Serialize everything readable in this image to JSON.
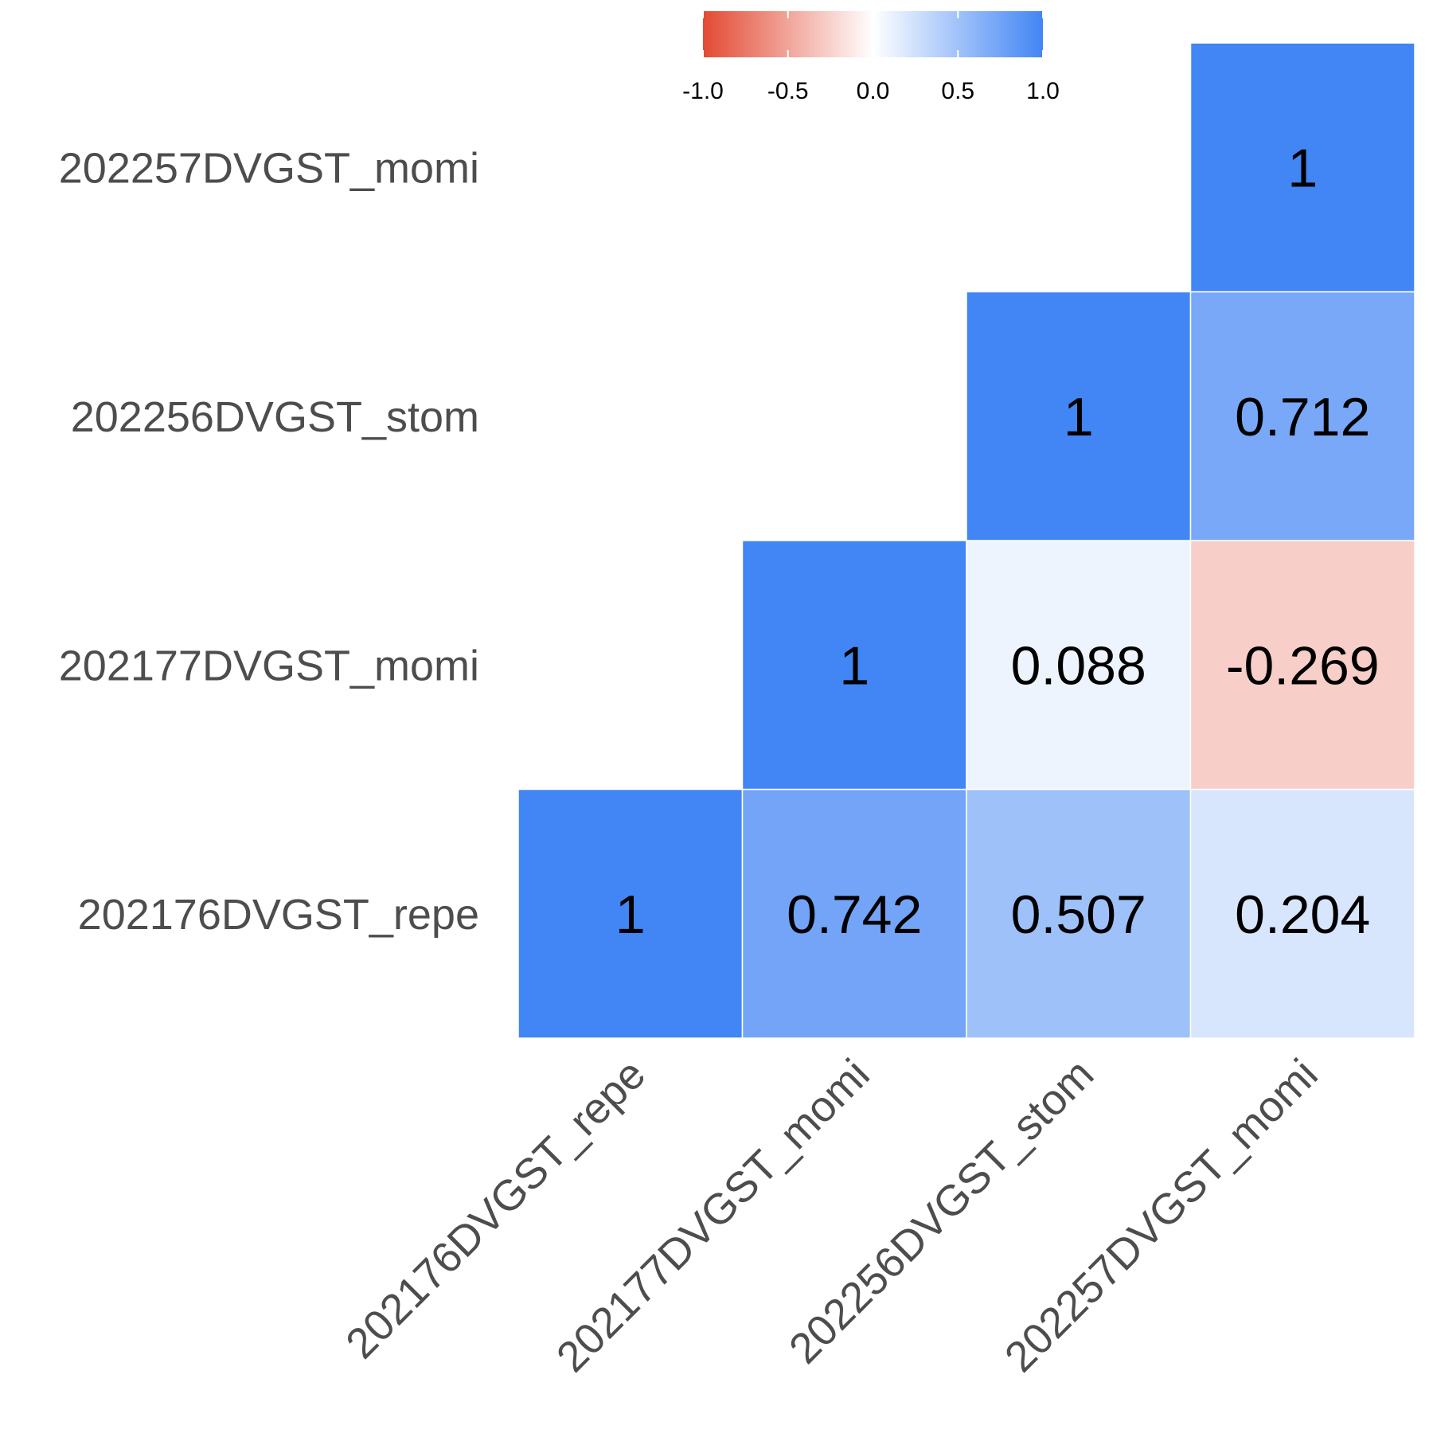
{
  "chart_data": {
    "type": "heatmap",
    "title": "",
    "xlabel": "",
    "ylabel": "",
    "variables": [
      "202176DVGST_repe",
      "202177DVGST_momi",
      "202256DVGST_stom",
      "202257DVGST_momi"
    ],
    "x_labels": [
      "202176DVGST_repe",
      "202177DVGST_momi",
      "202256DVGST_stom",
      "202257DVGST_momi"
    ],
    "y_labels_top_to_bottom": [
      "202257DVGST_momi",
      "202256DVGST_stom",
      "202177DVGST_momi",
      "202176DVGST_repe"
    ],
    "shape": "upper-triangular",
    "cells": [
      {
        "x": "202176DVGST_repe",
        "y": "202176DVGST_repe",
        "value": 1,
        "label": "1"
      },
      {
        "x": "202177DVGST_momi",
        "y": "202176DVGST_repe",
        "value": 0.742,
        "label": "0.742"
      },
      {
        "x": "202256DVGST_stom",
        "y": "202176DVGST_repe",
        "value": 0.507,
        "label": "0.507"
      },
      {
        "x": "202257DVGST_momi",
        "y": "202176DVGST_repe",
        "value": 0.204,
        "label": "0.204"
      },
      {
        "x": "202177DVGST_momi",
        "y": "202177DVGST_momi",
        "value": 1,
        "label": "1"
      },
      {
        "x": "202256DVGST_stom",
        "y": "202177DVGST_momi",
        "value": 0.088,
        "label": "0.088"
      },
      {
        "x": "202257DVGST_momi",
        "y": "202177DVGST_momi",
        "value": -0.269,
        "label": "-0.269"
      },
      {
        "x": "202256DVGST_stom",
        "y": "202256DVGST_stom",
        "value": 1,
        "label": "1"
      },
      {
        "x": "202257DVGST_momi",
        "y": "202256DVGST_stom",
        "value": 0.712,
        "label": "0.712"
      },
      {
        "x": "202257DVGST_momi",
        "y": "202257DVGST_momi",
        "value": 1,
        "label": "1"
      }
    ],
    "color_scale": {
      "low": "#E34A33",
      "mid": "#FFFFFF",
      "high": "#4285F4",
      "range": [
        -1,
        1
      ],
      "ticks": [
        -1,
        -0.5,
        0,
        0.5,
        1
      ],
      "tick_labels": [
        "-1.0",
        "-0.5",
        "0.0",
        "0.5",
        "1.0"
      ]
    },
    "legend_position": "top",
    "grid": false
  }
}
